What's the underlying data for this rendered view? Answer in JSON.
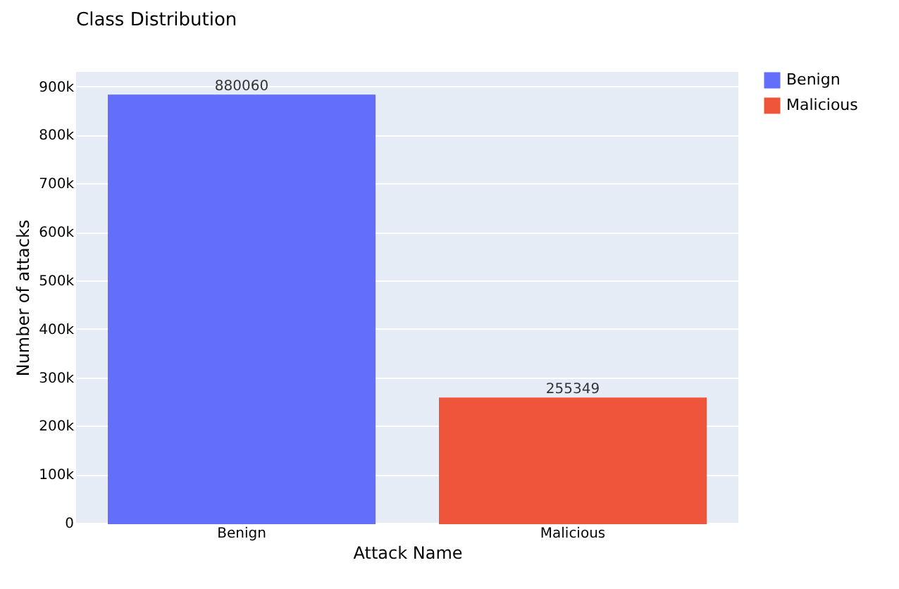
{
  "chart_data": {
    "type": "bar",
    "title": "Class Distribution",
    "xlabel": "Attack Name",
    "ylabel": "Number of attacks",
    "categories": [
      "Benign",
      "Malicious"
    ],
    "series": [
      {
        "name": "Benign",
        "color": "#636efa",
        "values": [
          880060,
          null
        ]
      },
      {
        "name": "Malicious",
        "color": "#ef553b",
        "values": [
          null,
          255349
        ]
      }
    ],
    "ylim": [
      0,
      930000
    ],
    "yticks": [
      0,
      {
        "value": 100000,
        "label": "100k"
      },
      {
        "value": 200000,
        "label": "200k"
      },
      {
        "value": 300000,
        "label": "300k"
      },
      {
        "value": 400000,
        "label": "400k"
      },
      {
        "value": 500000,
        "label": "500k"
      },
      {
        "value": 600000,
        "label": "600k"
      },
      {
        "value": 700000,
        "label": "700k"
      },
      {
        "value": 800000,
        "label": "800k"
      },
      {
        "value": 900000,
        "label": "900k"
      }
    ],
    "data_labels": true,
    "grid": "y",
    "legend": "top right"
  }
}
